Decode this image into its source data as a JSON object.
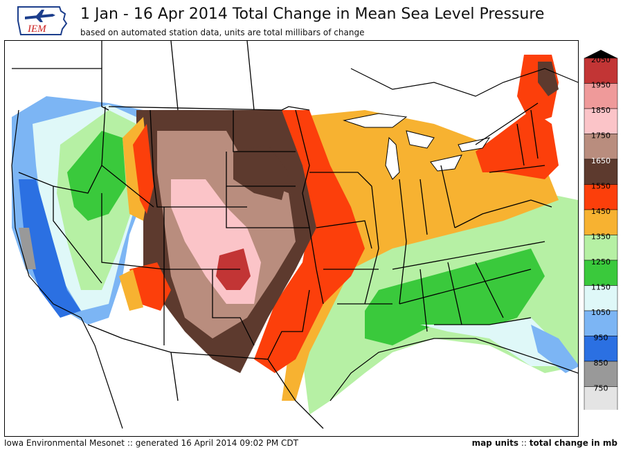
{
  "header": {
    "logo_text": "IEM",
    "title": "1 Jan - 16 Apr 2014 Total Change in Mean Sea Level Pressure",
    "subtitle": "based on automated station data, units are total millibars of change"
  },
  "footer": {
    "left": "Iowa Environmental Mesonet :: generated 16 April 2014 09:02 PM CDT",
    "right_label": "map units",
    "right_sep": " :: ",
    "right_value": "total change in mb"
  },
  "legend": {
    "ticks": [
      "2050",
      "1950",
      "1850",
      "1750",
      "1650",
      "1550",
      "1450",
      "1350",
      "1250",
      "1150",
      "1050",
      "950",
      "850",
      "750"
    ],
    "colors": [
      "#c23535",
      "#ef9a9a",
      "#fbc4c8",
      "#b98d7e",
      "#5d3a2e",
      "#fc3f0b",
      "#f7b231",
      "#b6f0a4",
      "#3ac93c",
      "#dff8f8",
      "#7cb5f4",
      "#2b70e2",
      "#999999",
      "#e4e4e4"
    ],
    "extend_color": "#000000"
  },
  "colors": {
    "state_lines": "#000000",
    "water": "#ffffff"
  }
}
